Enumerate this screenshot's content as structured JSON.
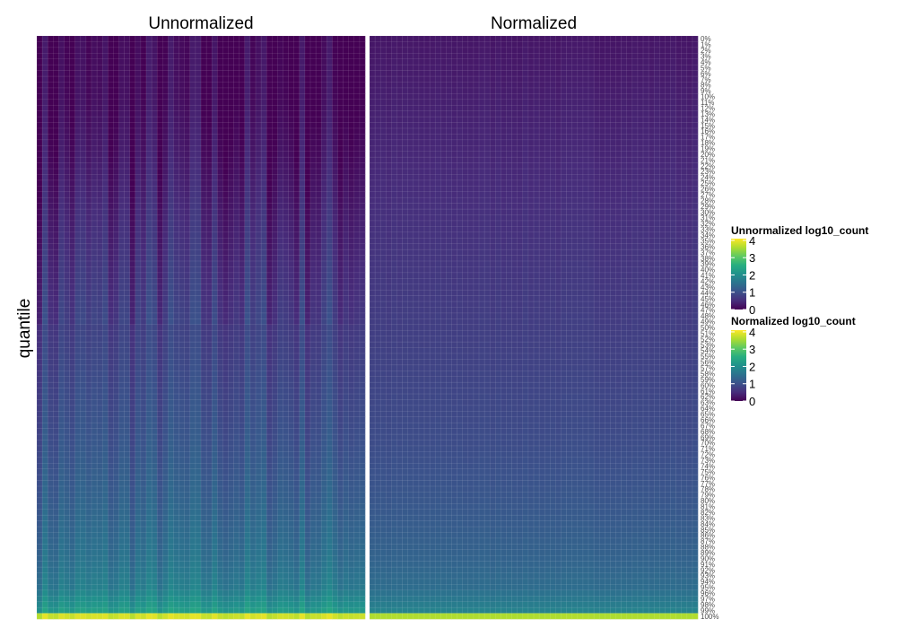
{
  "chart_data": {
    "type": "heatmap",
    "ylabel": "quantile",
    "panels": [
      {
        "title": "Unnormalized",
        "legend_title": "Unnormalized log10_count",
        "value_range": [
          0,
          4.1
        ]
      },
      {
        "title": "Normalized",
        "legend_title": "Normalized log10_count",
        "value_range": [
          0,
          4.1
        ]
      }
    ],
    "samples_per_panel": 60,
    "quantile_labels": [
      "0%",
      "1%",
      "2%",
      "3%",
      "4%",
      "5%",
      "6%",
      "7%",
      "8%",
      "9%",
      "10%",
      "11%",
      "12%",
      "13%",
      "14%",
      "15%",
      "16%",
      "17%",
      "18%",
      "19%",
      "20%",
      "21%",
      "22%",
      "23%",
      "24%",
      "25%",
      "26%",
      "27%",
      "28%",
      "29%",
      "30%",
      "31%",
      "32%",
      "33%",
      "34%",
      "35%",
      "36%",
      "37%",
      "38%",
      "39%",
      "40%",
      "41%",
      "42%",
      "43%",
      "44%",
      "45%",
      "46%",
      "47%",
      "48%",
      "49%",
      "50%",
      "51%",
      "52%",
      "53%",
      "54%",
      "55%",
      "56%",
      "57%",
      "58%",
      "59%",
      "60%",
      "61%",
      "62%",
      "63%",
      "64%",
      "65%",
      "66%",
      "67%",
      "68%",
      "69%",
      "70%",
      "71%",
      "72%",
      "73%",
      "74%",
      "75%",
      "76%",
      "77%",
      "78%",
      "79%",
      "80%",
      "81%",
      "82%",
      "83%",
      "84%",
      "85%",
      "86%",
      "87%",
      "88%",
      "89%",
      "90%",
      "91%",
      "92%",
      "93%",
      "94%",
      "95%",
      "96%",
      "97%",
      "98%",
      "99%",
      "100%"
    ],
    "profile_unnormalized": [
      {
        "q": 0,
        "v": 0.0
      },
      {
        "q": 10,
        "v": 0.05
      },
      {
        "q": 20,
        "v": 0.2
      },
      {
        "q": 30,
        "v": 0.4
      },
      {
        "q": 50,
        "v": 0.75
      },
      {
        "q": 70,
        "v": 1.05
      },
      {
        "q": 80,
        "v": 1.25
      },
      {
        "q": 90,
        "v": 1.5
      },
      {
        "q": 95,
        "v": 1.7
      },
      {
        "q": 99,
        "v": 2.2
      },
      {
        "q": 100,
        "v": 3.8
      }
    ],
    "profile_normalized": [
      {
        "q": 0,
        "v": 0.25
      },
      {
        "q": 10,
        "v": 0.35
      },
      {
        "q": 20,
        "v": 0.45
      },
      {
        "q": 30,
        "v": 0.55
      },
      {
        "q": 50,
        "v": 0.75
      },
      {
        "q": 70,
        "v": 0.95
      },
      {
        "q": 80,
        "v": 1.1
      },
      {
        "q": 90,
        "v": 1.3
      },
      {
        "q": 95,
        "v": 1.45
      },
      {
        "q": 99,
        "v": 1.8
      },
      {
        "q": 100,
        "v": 3.6
      }
    ],
    "legend_ticks": [
      "0",
      "1",
      "2",
      "3",
      "4"
    ],
    "colormap": "viridis",
    "grid": true
  }
}
